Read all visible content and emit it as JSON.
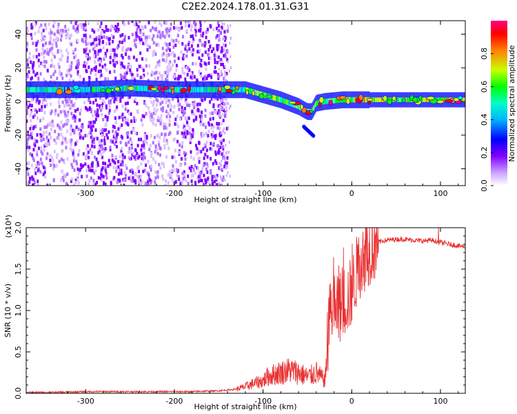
{
  "title": "C2E2.2024.178.01.31.G31",
  "chart_data": [
    {
      "type": "heatmap",
      "xlabel": "Height of straight line (km)",
      "ylabel": "Frequency (Hz)",
      "xlim": [
        -367,
        128
      ],
      "ylim": [
        -50,
        48
      ],
      "x_ticks": [
        -300,
        -200,
        -100,
        0,
        100
      ],
      "y_ticks": [
        -40,
        -20,
        0,
        20,
        40
      ],
      "colorbar": {
        "label": "Normalized spectral amplitude",
        "range": [
          0,
          1
        ],
        "ticks": [
          "0.0",
          "0.2",
          "0.4",
          "0.6",
          "0.8"
        ],
        "colors": [
          "#ffffff",
          "#c8a0ff",
          "#8000ff",
          "#0000ff",
          "#00b4ff",
          "#00ffc8",
          "#00ff00",
          "#c8ff00",
          "#ff8000",
          "#ff0000",
          "#ff0080"
        ]
      },
      "ridge": [
        {
          "x": -367,
          "y": 7
        },
        {
          "x": -300,
          "y": 7
        },
        {
          "x": -250,
          "y": 8
        },
        {
          "x": -200,
          "y": 7
        },
        {
          "x": -150,
          "y": 7
        },
        {
          "x": -120,
          "y": 7
        },
        {
          "x": -100,
          "y": 4
        },
        {
          "x": -80,
          "y": 1
        },
        {
          "x": -60,
          "y": -3
        },
        {
          "x": -50,
          "y": -6
        },
        {
          "x": -45,
          "y": -6
        },
        {
          "x": -40,
          "y": -1
        },
        {
          "x": -30,
          "y": 0
        },
        {
          "x": -10,
          "y": 1
        },
        {
          "x": 0,
          "y": 1
        },
        {
          "x": 50,
          "y": 1
        },
        {
          "x": 100,
          "y": 1
        },
        {
          "x": 128,
          "y": 1
        }
      ]
    },
    {
      "type": "line",
      "xlabel": "Height of straight line (km)",
      "ylabel": "SNR (10 * v/v)",
      "y_multiplier": "(x10⁴)",
      "xlim": [
        -367,
        128
      ],
      "ylim": [
        0,
        2.0
      ],
      "x_ticks": [
        -300,
        -200,
        -100,
        0,
        100
      ],
      "y_ticks": [
        "0.0",
        "0.5",
        "1.0",
        "1.5",
        "2.0"
      ],
      "color": "#e83030",
      "series": [
        {
          "x": [
            -367,
            -340,
            -300,
            -260,
            -220,
            -180,
            -150,
            -130,
            -120,
            -110,
            -100,
            -95,
            -90,
            -80,
            -70,
            -60,
            -50,
            -45,
            -40,
            -35,
            -30,
            -28,
            -26,
            -24,
            -20,
            -15,
            -10,
            -5,
            0,
            5,
            10,
            20,
            30,
            40,
            50,
            60,
            70,
            80,
            90,
            100,
            110,
            120,
            128
          ],
          "y": [
            0.01,
            0.01,
            0.02,
            0.02,
            0.02,
            0.02,
            0.03,
            0.05,
            0.08,
            0.12,
            0.15,
            0.2,
            0.22,
            0.25,
            0.28,
            0.25,
            0.2,
            0.22,
            0.25,
            0.2,
            0.15,
            0.5,
            0.8,
            1.0,
            1.05,
            1.0,
            1.1,
            1.15,
            1.2,
            1.45,
            1.6,
            1.75,
            1.83,
            1.85,
            1.86,
            1.86,
            1.85,
            1.84,
            1.85,
            1.82,
            1.8,
            1.78,
            1.77
          ]
        }
      ]
    }
  ]
}
